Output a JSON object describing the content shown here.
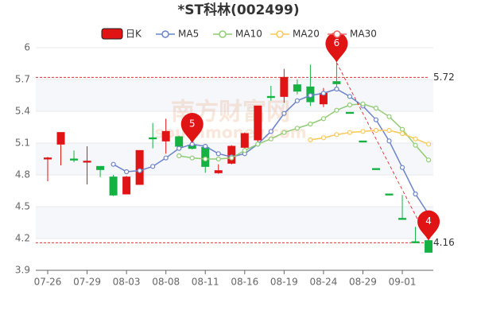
{
  "chart_data": {
    "type": "candlestick",
    "title": "*ST科林(002499)",
    "watermark": [
      "南方财富网",
      "southmoney.com"
    ],
    "categories": [
      "07-26",
      null,
      null,
      "07-29",
      null,
      null,
      "08-03",
      null,
      null,
      "08-08",
      null,
      null,
      "08-11",
      null,
      null,
      "08-16",
      null,
      null,
      "08-19",
      null,
      null,
      "08-24",
      null,
      null,
      "08-29",
      null,
      null,
      "09-01",
      null,
      null
    ],
    "candles": {
      "name": "日K",
      "up_color": "#e01414",
      "down_color": "#14b143",
      "open": [
        4.95,
        5.09,
        4.95,
        4.92,
        4.88,
        4.78,
        4.62,
        4.71,
        5.15,
        5.12,
        5.16,
        5.08,
        5.06,
        4.82,
        4.91,
        5.06,
        5.13,
        5.54,
        5.54,
        5.65,
        5.63,
        5.47,
        5.68,
        5.39,
        5.12,
        4.86,
        4.62,
        4.39,
        4.17,
        4.18
      ],
      "close": [
        4.96,
        5.2,
        4.94,
        4.93,
        4.85,
        4.61,
        4.78,
        5.03,
        5.14,
        5.21,
        5.07,
        5.05,
        4.88,
        4.84,
        5.07,
        5.19,
        5.45,
        5.53,
        5.72,
        5.59,
        5.49,
        5.57,
        5.66,
        5.38,
        5.11,
        4.85,
        4.61,
        4.38,
        4.16,
        4.07
      ],
      "high": [
        4.97,
        5.2,
        5.03,
        5.07,
        4.88,
        4.8,
        4.79,
        5.03,
        5.29,
        5.33,
        5.17,
        5.1,
        5.08,
        4.9,
        5.08,
        5.2,
        5.45,
        5.64,
        5.8,
        5.7,
        5.84,
        5.62,
        5.86,
        5.39,
        5.12,
        4.86,
        4.62,
        4.61,
        4.31,
        4.18
      ],
      "low": [
        4.74,
        4.89,
        4.92,
        4.71,
        4.78,
        4.6,
        4.62,
        4.71,
        5.05,
        5.0,
        5.04,
        5.04,
        4.82,
        4.81,
        4.9,
        5.04,
        5.1,
        5.5,
        5.48,
        5.56,
        5.45,
        5.44,
        5.6,
        5.38,
        5.11,
        4.85,
        4.61,
        4.38,
        4.16,
        4.07
      ]
    },
    "series": [
      {
        "name": "MA5",
        "color": "#6b83c8",
        "values": [
          null,
          null,
          null,
          null,
          null,
          4.9,
          4.83,
          4.84,
          4.88,
          4.96,
          5.05,
          5.09,
          5.07,
          5.0,
          4.97,
          5.0,
          5.09,
          5.21,
          5.38,
          5.5,
          5.55,
          5.57,
          5.61,
          5.54,
          5.45,
          5.32,
          5.12,
          4.87,
          4.62,
          4.43
        ]
      },
      {
        "name": "MA10",
        "color": "#91cc75",
        "values": [
          null,
          null,
          null,
          null,
          null,
          null,
          null,
          null,
          null,
          null,
          4.98,
          4.96,
          4.95,
          4.95,
          4.96,
          5.03,
          5.09,
          5.14,
          5.2,
          5.24,
          5.28,
          5.33,
          5.41,
          5.46,
          5.47,
          5.43,
          5.35,
          5.23,
          5.08,
          4.94
        ]
      },
      {
        "name": "MA20",
        "color": "#fac858",
        "values": [
          null,
          null,
          null,
          null,
          null,
          null,
          null,
          null,
          null,
          null,
          null,
          null,
          null,
          null,
          null,
          null,
          null,
          null,
          null,
          null,
          5.13,
          5.15,
          5.18,
          5.2,
          5.21,
          5.22,
          5.22,
          5.19,
          5.14,
          5.09
        ]
      },
      {
        "name": "MA30",
        "color": "#ee6666",
        "values": [
          null,
          null,
          null,
          null,
          null,
          null,
          null,
          null,
          null,
          null,
          null,
          null,
          null,
          null,
          null,
          null,
          null,
          null,
          null,
          null,
          null,
          null,
          null,
          null,
          null,
          null,
          null,
          null,
          null,
          null
        ]
      }
    ],
    "markers": [
      {
        "label": "6",
        "index": 22
      },
      {
        "label": "5",
        "index": 11
      },
      {
        "label": "4",
        "index": 29
      }
    ],
    "reference_lines": [
      5.72,
      4.16
    ],
    "marker_color": "#e01414",
    "ylim": [
      3.9,
      6
    ],
    "yticks": [
      3.9,
      4.2,
      4.5,
      4.8,
      5.1,
      5.4,
      5.7,
      6
    ],
    "grid": true
  }
}
